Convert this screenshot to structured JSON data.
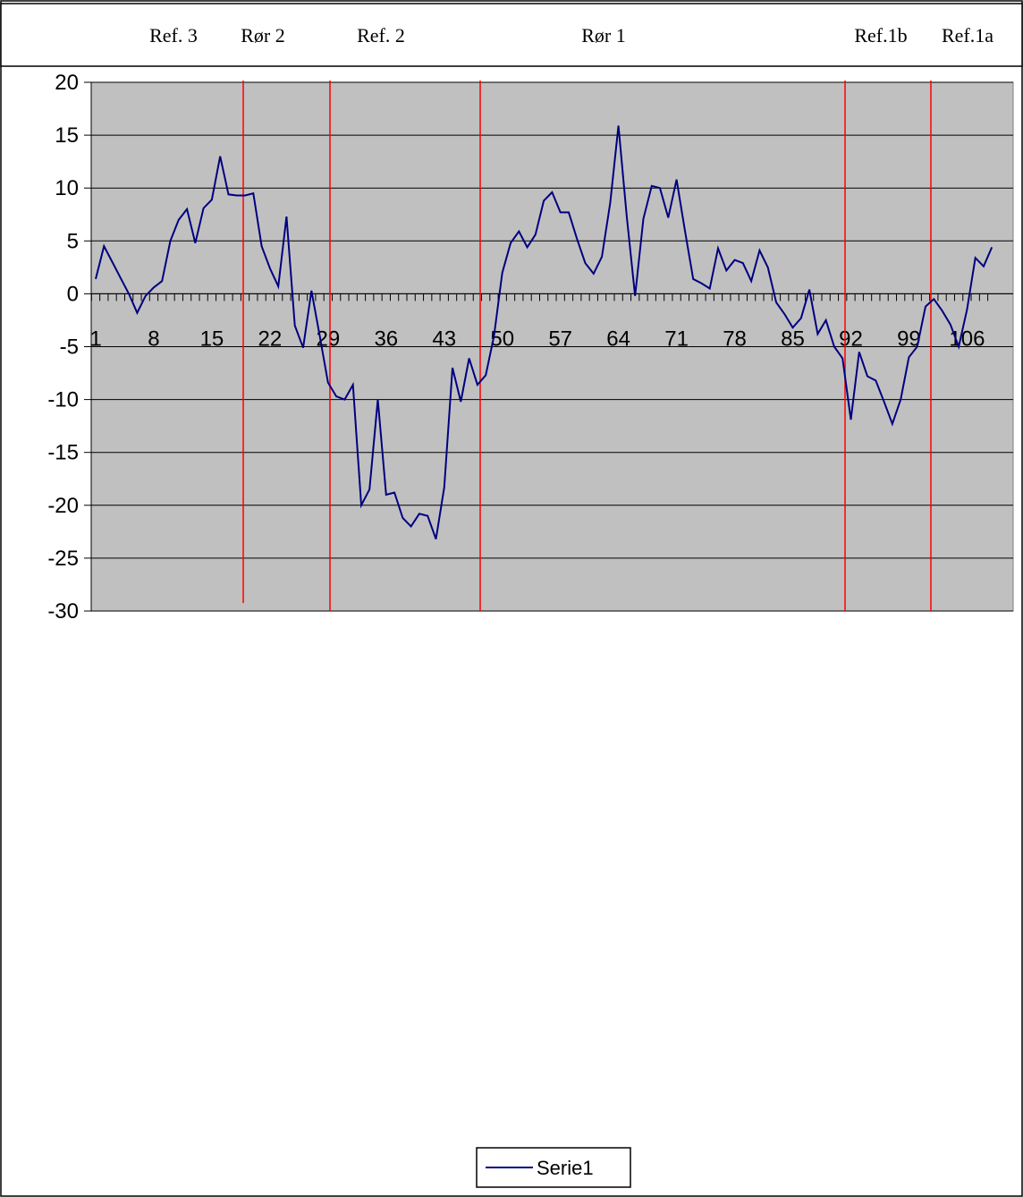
{
  "chart_data": {
    "type": "line",
    "title": "",
    "xlabel": "",
    "ylabel": "",
    "ylim": [
      -30,
      20
    ],
    "yticks": [
      20,
      15,
      10,
      5,
      0,
      -5,
      -10,
      -15,
      -20,
      -25,
      -30
    ],
    "x_tick_labels": [
      "1",
      "8",
      "15",
      "22",
      "29",
      "36",
      "43",
      "50",
      "57",
      "64",
      "71",
      "78",
      "85",
      "92",
      "99",
      "106"
    ],
    "x_tick_step": 7,
    "grid": true,
    "plot_background": "#c0c0c0",
    "legend": {
      "placement": "bottom-center"
    },
    "series": [
      {
        "name": "Serie1",
        "color": "#000080",
        "values": [
          1.4,
          4.5,
          3.0,
          1.5,
          0.0,
          -1.8,
          -0.2,
          0.6,
          1.2,
          5.0,
          7.0,
          8.0,
          4.8,
          8.1,
          8.9,
          13.0,
          9.4,
          9.3,
          9.3,
          9.5,
          4.5,
          2.4,
          0.7,
          7.3,
          -3.0,
          -5.1,
          0.3,
          -4.0,
          -8.4,
          -9.7,
          -10.0,
          -8.6,
          -20.0,
          -18.5,
          -10.0,
          -19.0,
          -18.8,
          -21.2,
          -22.0,
          -20.8,
          -21.0,
          -23.2,
          -18.3,
          -7.0,
          -10.2,
          -6.1,
          -8.6,
          -7.7,
          -4.0,
          2.0,
          4.8,
          5.9,
          4.4,
          5.6,
          8.8,
          9.6,
          7.7,
          7.7,
          5.2,
          2.9,
          1.9,
          3.5,
          8.6,
          15.9,
          7.3,
          -0.2,
          7.1,
          10.2,
          10.0,
          7.2,
          10.8,
          6.0,
          1.4,
          1.0,
          0.5,
          4.3,
          2.2,
          3.2,
          2.9,
          1.2,
          4.1,
          2.5,
          -0.8,
          -1.9,
          -3.2,
          -2.3,
          0.4,
          -3.8,
          -2.5,
          -5.0,
          -6.1,
          -11.9,
          -5.5,
          -7.8,
          -8.2,
          -10.2,
          -12.3,
          -10.0,
          -6.0,
          -5.0,
          -1.2,
          -0.5,
          -1.6,
          -2.9,
          -5.0,
          -1.5,
          3.4,
          2.6,
          4.4
        ]
      }
    ],
    "markers": [
      {
        "label": "Rør 2",
        "x": 19.5,
        "color": "#ff0000"
      },
      {
        "label": "",
        "x": 29.5,
        "color": "#ff0000"
      },
      {
        "label": "",
        "x": 47.5,
        "color": "#ff0000"
      },
      {
        "label": "",
        "x": 91.5,
        "color": "#ff0000"
      },
      {
        "label": "",
        "x": 102,
        "color": "#ff0000"
      }
    ],
    "top_labels": [
      "Ref. 3",
      "Rør 2",
      "Ref. 2",
      "Rør 1",
      "Ref.1b",
      "Ref.1a"
    ]
  }
}
